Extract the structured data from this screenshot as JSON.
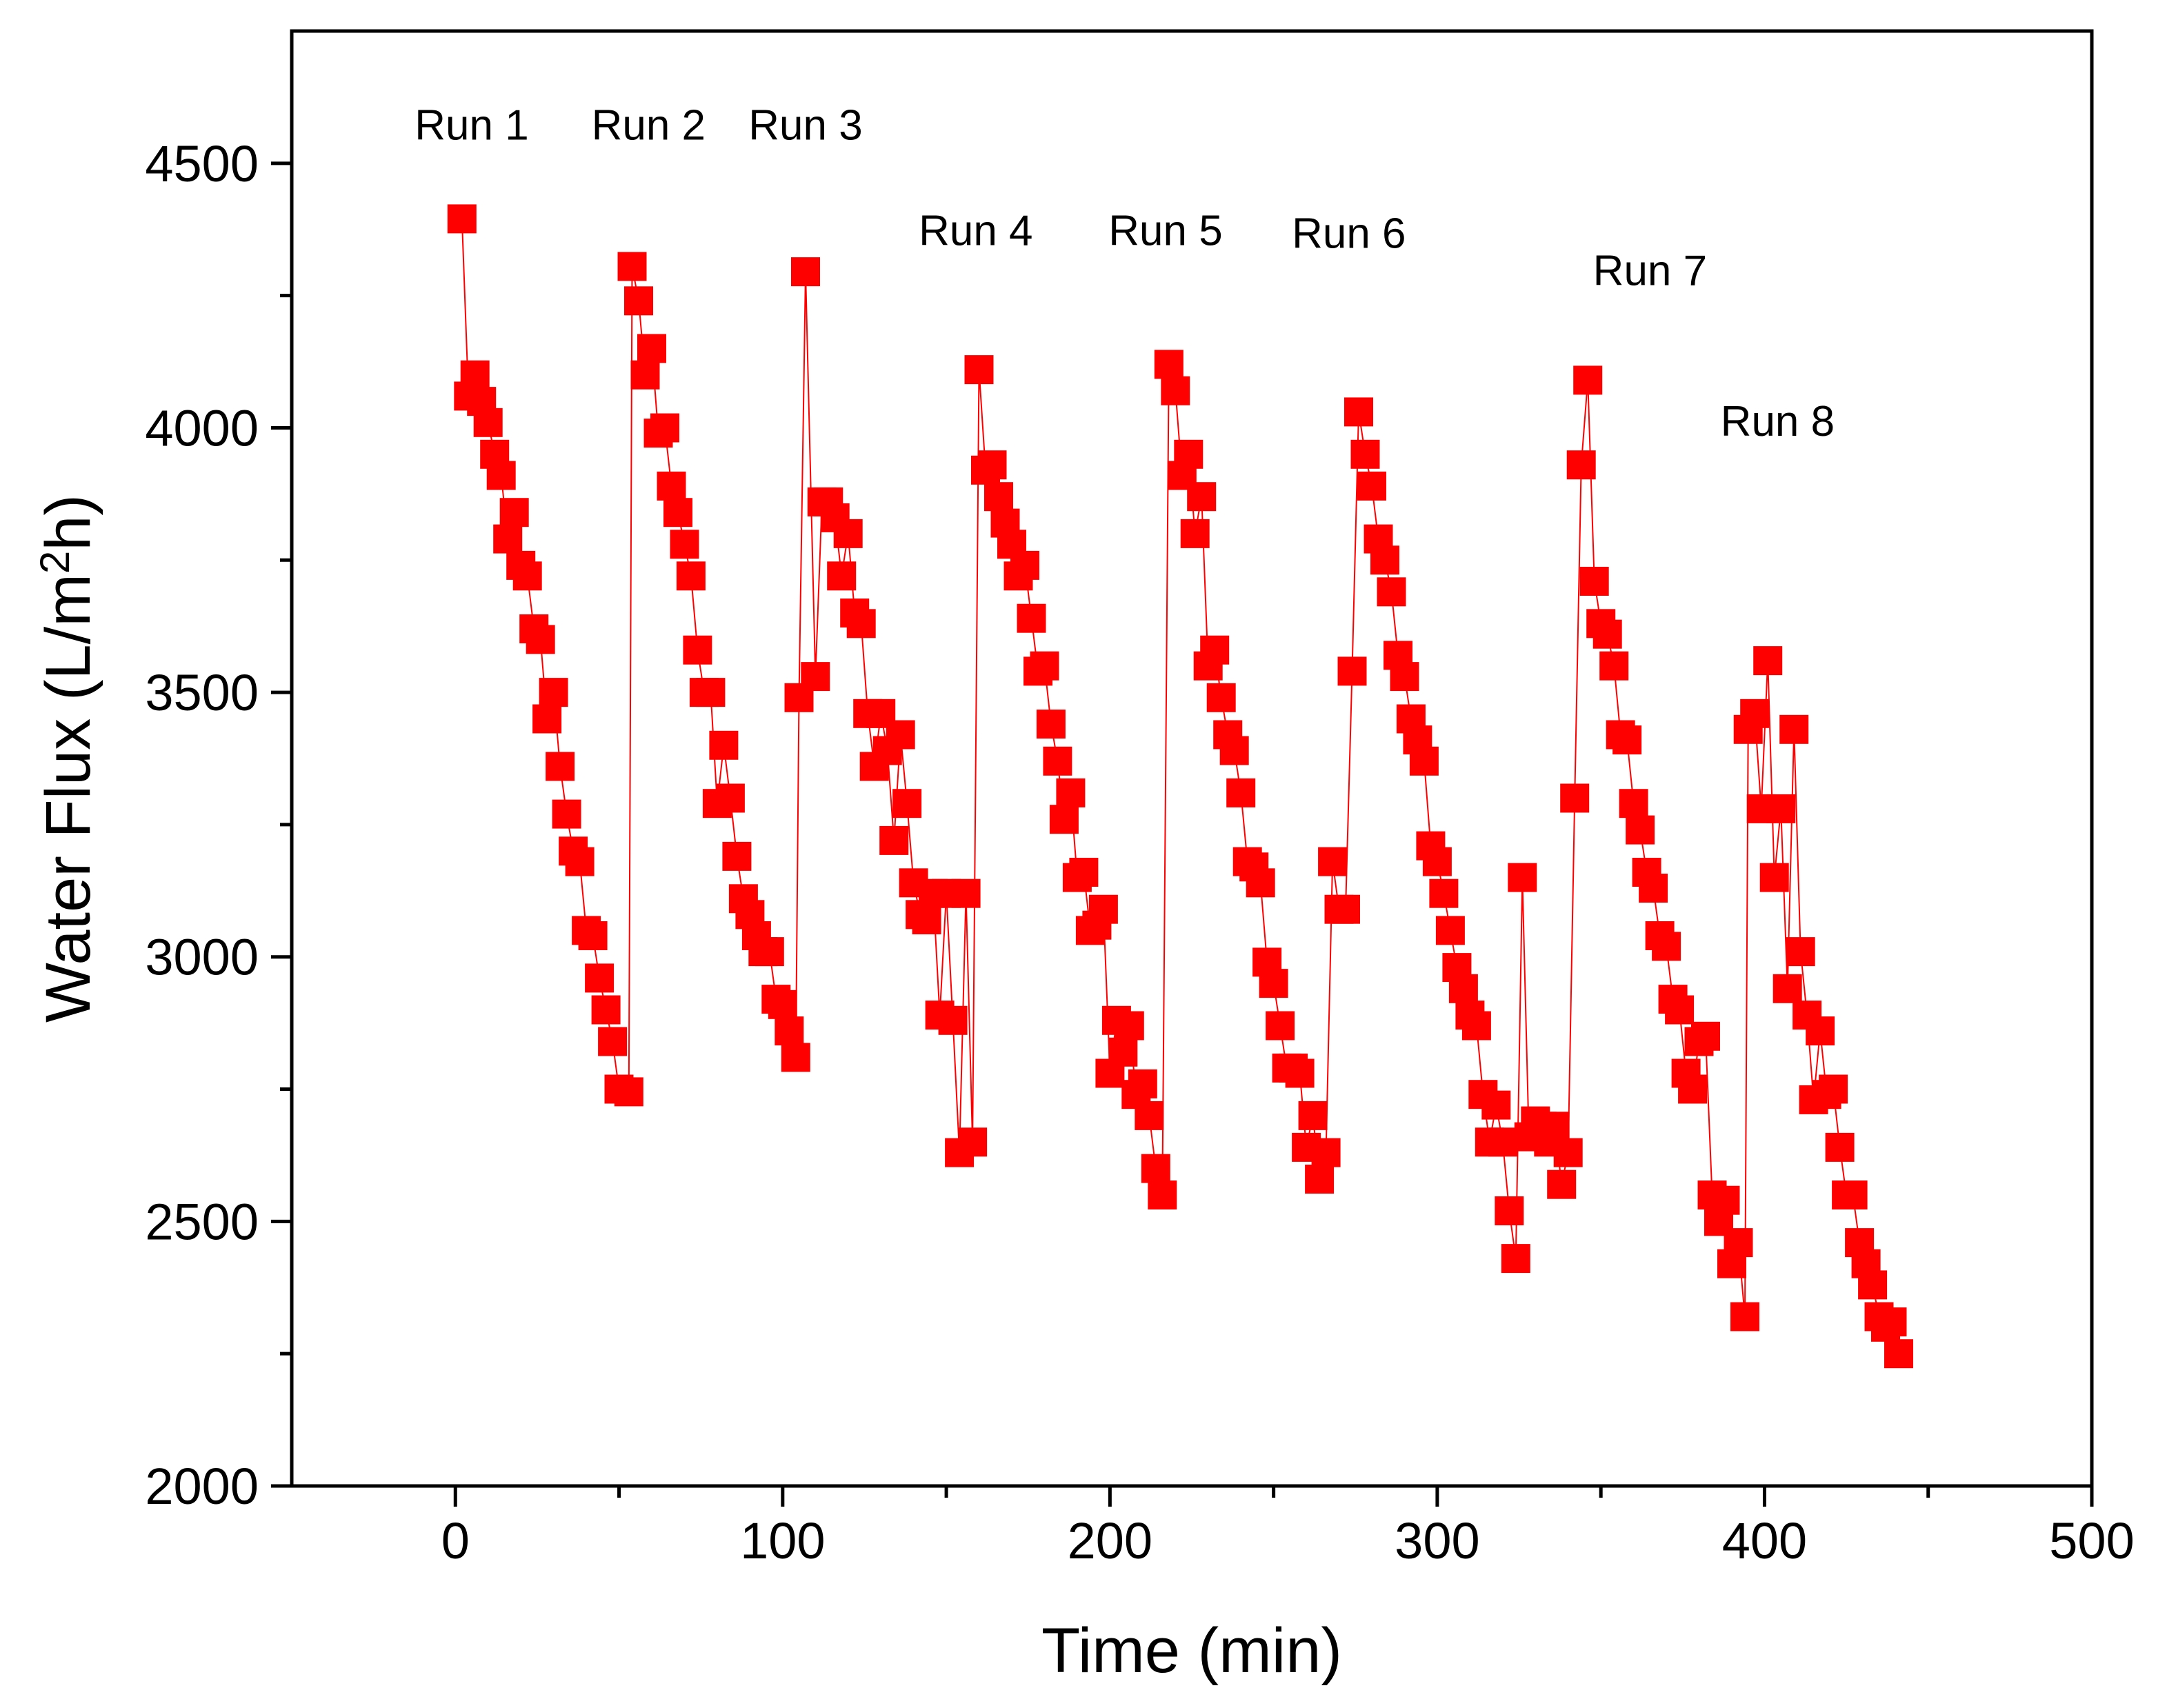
{
  "chart_data": {
    "type": "scatter",
    "xlabel": "Time (min)",
    "ylabel_prefix": "Water Flux (L/m",
    "ylabel_sup": "2",
    "ylabel_suffix": "h)",
    "xlim": [
      -50,
      500
    ],
    "ylim": [
      2000,
      4750
    ],
    "xticks": [
      0,
      100,
      200,
      300,
      400,
      500
    ],
    "xticks_minor": [
      50,
      150,
      250,
      350,
      450
    ],
    "yticks": [
      2000,
      2500,
      3000,
      3500,
      4000,
      4500
    ],
    "yticks_minor": [
      2250,
      2750,
      3250,
      3750,
      4250
    ],
    "grid": false,
    "series_color": "#ff0000",
    "marker": "square",
    "connected": true,
    "annotations": [
      {
        "text": "Run 1",
        "x": 5,
        "y": 4545
      },
      {
        "text": "Run 2",
        "x": 59,
        "y": 4545
      },
      {
        "text": "Run 3",
        "x": 107,
        "y": 4545
      },
      {
        "text": "Run 4",
        "x": 159,
        "y": 4345
      },
      {
        "text": "Run 5",
        "x": 217,
        "y": 4345
      },
      {
        "text": "Run 6",
        "x": 273,
        "y": 4340
      },
      {
        "text": "Run 7",
        "x": 365,
        "y": 4270
      },
      {
        "text": "Run 8",
        "x": 404,
        "y": 3985
      }
    ],
    "series": [
      {
        "name": "Water Flux",
        "points": [
          [
            2,
            4395
          ],
          [
            4,
            4060
          ],
          [
            6,
            4100
          ],
          [
            8,
            4050
          ],
          [
            10,
            4010
          ],
          [
            12,
            3950
          ],
          [
            14,
            3910
          ],
          [
            16,
            3790
          ],
          [
            18,
            3840
          ],
          [
            20,
            3740
          ],
          [
            22,
            3720
          ],
          [
            24,
            3620
          ],
          [
            26,
            3600
          ],
          [
            28,
            3450
          ],
          [
            30,
            3500
          ],
          [
            32,
            3360
          ],
          [
            34,
            3270
          ],
          [
            36,
            3200
          ],
          [
            38,
            3180
          ],
          [
            40,
            3050
          ],
          [
            42,
            3040
          ],
          [
            44,
            2960
          ],
          [
            46,
            2900
          ],
          [
            48,
            2840
          ],
          [
            50,
            2750
          ],
          [
            53,
            2745
          ],
          [
            54,
            4305
          ],
          [
            56,
            4240
          ],
          [
            58,
            4100
          ],
          [
            60,
            4150
          ],
          [
            62,
            3990
          ],
          [
            64,
            4000
          ],
          [
            66,
            3890
          ],
          [
            68,
            3840
          ],
          [
            70,
            3780
          ],
          [
            72,
            3720
          ],
          [
            74,
            3580
          ],
          [
            76,
            3500
          ],
          [
            78,
            3500
          ],
          [
            80,
            3290
          ],
          [
            82,
            3400
          ],
          [
            84,
            3300
          ],
          [
            86,
            3190
          ],
          [
            88,
            3110
          ],
          [
            90,
            3080
          ],
          [
            92,
            3040
          ],
          [
            94,
            3010
          ],
          [
            96,
            3010
          ],
          [
            98,
            2920
          ],
          [
            100,
            2910
          ],
          [
            102,
            2860
          ],
          [
            104,
            2810
          ],
          [
            105,
            3490
          ],
          [
            107,
            4295
          ],
          [
            110,
            3530
          ],
          [
            112,
            3860
          ],
          [
            114,
            3860
          ],
          [
            116,
            3830
          ],
          [
            118,
            3720
          ],
          [
            120,
            3800
          ],
          [
            122,
            3650
          ],
          [
            124,
            3630
          ],
          [
            126,
            3460
          ],
          [
            128,
            3360
          ],
          [
            130,
            3460
          ],
          [
            132,
            3390
          ],
          [
            134,
            3220
          ],
          [
            136,
            3420
          ],
          [
            138,
            3290
          ],
          [
            140,
            3140
          ],
          [
            142,
            3080
          ],
          [
            144,
            3070
          ],
          [
            146,
            3120
          ],
          [
            148,
            2890
          ],
          [
            150,
            3120
          ],
          [
            152,
            2880
          ],
          [
            154,
            2630
          ],
          [
            156,
            3120
          ],
          [
            158,
            2650
          ],
          [
            160,
            4110
          ],
          [
            162,
            3920
          ],
          [
            164,
            3930
          ],
          [
            166,
            3870
          ],
          [
            168,
            3820
          ],
          [
            170,
            3780
          ],
          [
            172,
            3720
          ],
          [
            174,
            3740
          ],
          [
            176,
            3640
          ],
          [
            178,
            3540
          ],
          [
            180,
            3550
          ],
          [
            182,
            3440
          ],
          [
            184,
            3370
          ],
          [
            186,
            3260
          ],
          [
            188,
            3310
          ],
          [
            190,
            3150
          ],
          [
            192,
            3160
          ],
          [
            194,
            3050
          ],
          [
            196,
            3060
          ],
          [
            198,
            3090
          ],
          [
            200,
            2780
          ],
          [
            202,
            2880
          ],
          [
            204,
            2820
          ],
          [
            206,
            2870
          ],
          [
            208,
            2740
          ],
          [
            210,
            2760
          ],
          [
            212,
            2700
          ],
          [
            214,
            2600
          ],
          [
            216,
            2550
          ],
          [
            218,
            4120
          ],
          [
            220,
            4070
          ],
          [
            222,
            3910
          ],
          [
            224,
            3950
          ],
          [
            226,
            3800
          ],
          [
            228,
            3870
          ],
          [
            230,
            3550
          ],
          [
            232,
            3580
          ],
          [
            234,
            3490
          ],
          [
            236,
            3420
          ],
          [
            238,
            3390
          ],
          [
            240,
            3310
          ],
          [
            242,
            3180
          ],
          [
            244,
            3170
          ],
          [
            246,
            3140
          ],
          [
            248,
            2990
          ],
          [
            250,
            2950
          ],
          [
            252,
            2870
          ],
          [
            254,
            2790
          ],
          [
            256,
            2790
          ],
          [
            258,
            2780
          ],
          [
            260,
            2640
          ],
          [
            262,
            2700
          ],
          [
            264,
            2580
          ],
          [
            266,
            2630
          ],
          [
            268,
            3180
          ],
          [
            270,
            3090
          ],
          [
            272,
            3090
          ],
          [
            274,
            3540
          ],
          [
            276,
            4030
          ],
          [
            278,
            3950
          ],
          [
            280,
            3890
          ],
          [
            282,
            3790
          ],
          [
            284,
            3750
          ],
          [
            286,
            3690
          ],
          [
            288,
            3570
          ],
          [
            290,
            3530
          ],
          [
            292,
            3450
          ],
          [
            294,
            3410
          ],
          [
            296,
            3370
          ],
          [
            298,
            3210
          ],
          [
            300,
            3180
          ],
          [
            302,
            3120
          ],
          [
            304,
            3050
          ],
          [
            306,
            2980
          ],
          [
            308,
            2940
          ],
          [
            310,
            2890
          ],
          [
            312,
            2870
          ],
          [
            314,
            2740
          ],
          [
            316,
            2650
          ],
          [
            318,
            2720
          ],
          [
            320,
            2650
          ],
          [
            322,
            2520
          ],
          [
            324,
            2430
          ],
          [
            326,
            3150
          ],
          [
            328,
            2660
          ],
          [
            330,
            2690
          ],
          [
            332,
            2680
          ],
          [
            334,
            2650
          ],
          [
            336,
            2680
          ],
          [
            338,
            2570
          ],
          [
            340,
            2630
          ],
          [
            342,
            3300
          ],
          [
            344,
            3930
          ],
          [
            346,
            4090
          ],
          [
            348,
            3710
          ],
          [
            350,
            3630
          ],
          [
            352,
            3610
          ],
          [
            354,
            3550
          ],
          [
            356,
            3420
          ],
          [
            358,
            3410
          ],
          [
            360,
            3290
          ],
          [
            362,
            3240
          ],
          [
            364,
            3160
          ],
          [
            366,
            3130
          ],
          [
            368,
            3040
          ],
          [
            370,
            3020
          ],
          [
            372,
            2920
          ],
          [
            374,
            2900
          ],
          [
            376,
            2780
          ],
          [
            378,
            2750
          ],
          [
            380,
            2840
          ],
          [
            382,
            2850
          ],
          [
            384,
            2550
          ],
          [
            386,
            2500
          ],
          [
            388,
            2540
          ],
          [
            390,
            2420
          ],
          [
            392,
            2460
          ],
          [
            394,
            2320
          ],
          [
            395,
            3430
          ],
          [
            397,
            3460
          ],
          [
            399,
            3280
          ],
          [
            401,
            3560
          ],
          [
            403,
            3150
          ],
          [
            405,
            3280
          ],
          [
            407,
            2940
          ],
          [
            409,
            3430
          ],
          [
            411,
            3010
          ],
          [
            413,
            2890
          ],
          [
            415,
            2730
          ],
          [
            417,
            2860
          ],
          [
            419,
            2740
          ],
          [
            421,
            2750
          ],
          [
            423,
            2640
          ],
          [
            425,
            2550
          ],
          [
            427,
            2550
          ],
          [
            429,
            2460
          ],
          [
            431,
            2420
          ],
          [
            433,
            2380
          ],
          [
            435,
            2320
          ],
          [
            437,
            2300
          ],
          [
            439,
            2310
          ],
          [
            441,
            2250
          ]
        ]
      }
    ]
  }
}
